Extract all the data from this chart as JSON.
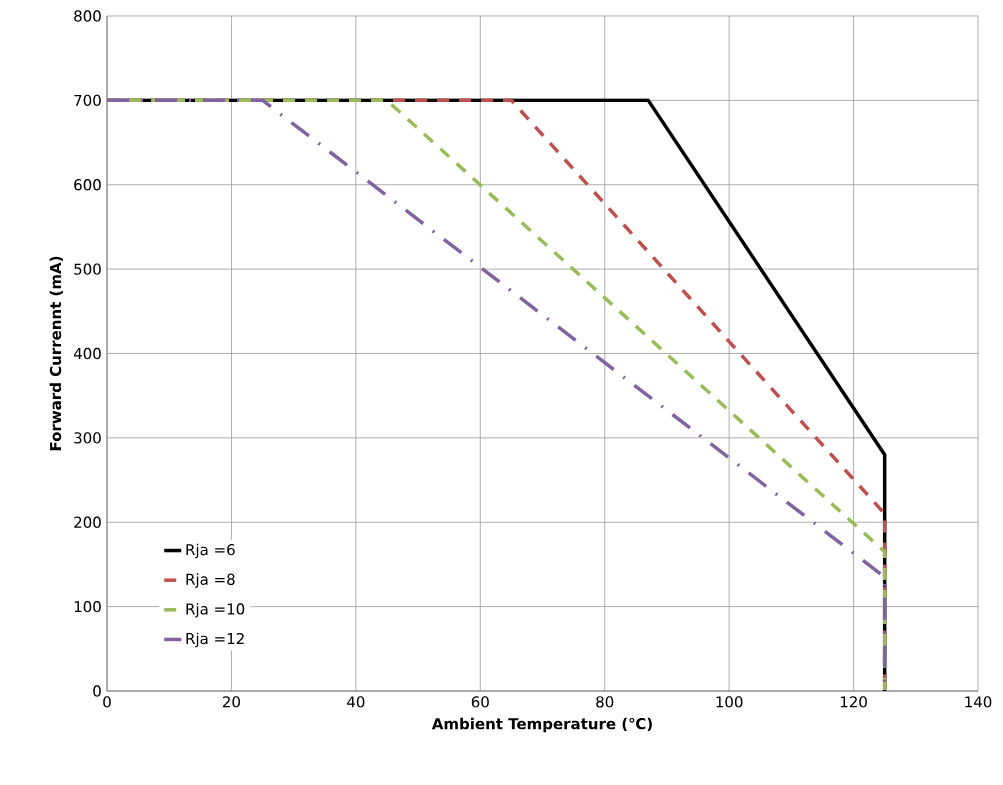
{
  "chart_data": {
    "type": "line",
    "xlabel": "Ambient Temperature (℃)",
    "ylabel": "Forward  Currennt (mA)",
    "xlim": [
      0,
      140
    ],
    "ylim": [
      0,
      800
    ],
    "xticks": [
      0,
      20,
      40,
      60,
      80,
      100,
      120,
      140
    ],
    "yticks": [
      0,
      100,
      200,
      300,
      400,
      500,
      600,
      700,
      800
    ],
    "grid": true,
    "legend": "bottom left",
    "series": [
      {
        "name": "Rja =6",
        "color": "#000000",
        "line_style": "solid",
        "x": [
          0,
          87,
          125,
          125
        ],
        "values": [
          700,
          700,
          280,
          0
        ]
      },
      {
        "name": "Rja =8",
        "color": "#c0504d",
        "line_style": "dashed",
        "x": [
          0,
          65,
          125,
          125
        ],
        "values": [
          700,
          700,
          210,
          0
        ]
      },
      {
        "name": "Rja =10",
        "color": "#9bbb59",
        "line_style": "dashed",
        "x": [
          0,
          45,
          125,
          125
        ],
        "values": [
          700,
          700,
          165,
          0
        ]
      },
      {
        "name": "Rja =12",
        "color": "#8064a2",
        "line_style": "dashdot",
        "x": [
          0,
          25,
          125,
          125
        ],
        "values": [
          700,
          700,
          135,
          0
        ]
      }
    ]
  }
}
